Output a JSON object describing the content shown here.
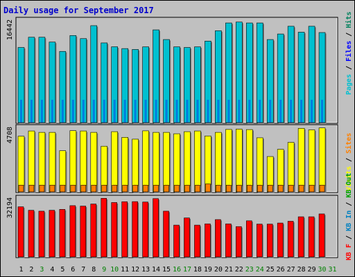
{
  "title": "Daily usage for September 2017",
  "colors": {
    "pages": "#00c0d0",
    "files": "#0000ff",
    "hits": "#00805c",
    "visits": "#ffff00",
    "sites": "#ff8000",
    "kb": "#ff0000",
    "kb_in": "#0080c0",
    "kb_out": "#00a000",
    "weekend_label": "#008000",
    "weekday_label": "#000000"
  },
  "chart_data": [
    {
      "type": "bar",
      "title": "Daily usage for September 2017",
      "ymax_label": "16442",
      "legend": [
        "Pages",
        "Files",
        "Hits"
      ],
      "categories": [
        "1",
        "2",
        "3",
        "4",
        "5",
        "6",
        "7",
        "8",
        "9",
        "10",
        "11",
        "12",
        "13",
        "14",
        "15",
        "16",
        "17",
        "18",
        "19",
        "20",
        "21",
        "22",
        "23",
        "24",
        "25",
        "26",
        "27",
        "28",
        "29",
        "30",
        "31"
      ],
      "series": [
        {
          "name": "Hits",
          "values": [
            10870,
            12350,
            12350,
            11650,
            10300,
            12600,
            12150,
            14030,
            11530,
            10970,
            10710,
            10580,
            10960,
            13420,
            12020,
            10960,
            10870,
            10960,
            11790,
            13290,
            14420,
            14550,
            14420,
            14420,
            12020,
            12820,
            13940,
            13080,
            13940,
            13030,
            0
          ]
        },
        {
          "name": "Files",
          "values": [
            3300,
            3300,
            3300,
            3300,
            3300,
            3300,
            3300,
            3300,
            3300,
            3300,
            3300,
            3300,
            3300,
            3300,
            3300,
            3300,
            3300,
            3300,
            3300,
            3300,
            3300,
            3300,
            3300,
            3300,
            3300,
            3300,
            3300,
            3300,
            3300,
            3300,
            0
          ]
        },
        {
          "name": "Pages",
          "values": [
            0,
            0,
            0,
            0,
            0,
            0,
            0,
            0,
            0,
            0,
            0,
            0,
            0,
            0,
            0,
            0,
            0,
            0,
            0,
            0,
            0,
            0,
            0,
            0,
            0,
            0,
            0,
            0,
            0,
            0,
            0
          ]
        }
      ]
    },
    {
      "type": "bar",
      "ymax_label": "4708",
      "legend": [
        "Visits",
        "Sites"
      ],
      "categories": [
        "1",
        "2",
        "3",
        "4",
        "5",
        "6",
        "7",
        "8",
        "9",
        "10",
        "11",
        "12",
        "13",
        "14",
        "15",
        "16",
        "17",
        "18",
        "19",
        "20",
        "21",
        "22",
        "23",
        "24",
        "25",
        "26",
        "27",
        "28",
        "29",
        "30",
        "31"
      ],
      "series": [
        {
          "name": "Visits",
          "values": [
            4000,
            4380,
            4280,
            4280,
            2960,
            4400,
            4380,
            4280,
            3280,
            4330,
            3920,
            3790,
            4390,
            4280,
            4280,
            4180,
            4330,
            4380,
            4020,
            4280,
            4490,
            4510,
            4480,
            3890,
            2540,
            3060,
            3560,
            4570,
            4460,
            4600,
            0
          ]
        },
        {
          "name": "Sites",
          "values": [
            480,
            480,
            480,
            480,
            480,
            480,
            480,
            480,
            480,
            480,
            480,
            480,
            480,
            480,
            480,
            480,
            480,
            480,
            570,
            480,
            480,
            480,
            480,
            480,
            480,
            480,
            480,
            480,
            480,
            480,
            0
          ]
        }
      ]
    },
    {
      "type": "bar",
      "ymax_label": "32194",
      "legend": [
        "KB F",
        "KB In",
        "KB Out"
      ],
      "categories": [
        "1",
        "2",
        "3",
        "4",
        "5",
        "6",
        "7",
        "8",
        "9",
        "10",
        "11",
        "12",
        "13",
        "14",
        "15",
        "16",
        "17",
        "18",
        "19",
        "20",
        "21",
        "22",
        "23",
        "24",
        "25",
        "26",
        "27",
        "28",
        "29",
        "30",
        "31"
      ],
      "series": [
        {
          "name": "KB F",
          "values": [
            28100,
            26150,
            25650,
            26150,
            26650,
            28750,
            28500,
            29670,
            32850,
            30500,
            30950,
            31000,
            30770,
            32700,
            25650,
            17830,
            21860,
            17830,
            18530,
            20940,
            18530,
            17000,
            20250,
            18400,
            18400,
            19000,
            20000,
            22500,
            22500,
            24100,
            0
          ]
        },
        {
          "name": "KB In",
          "values": [
            0,
            0,
            0,
            0,
            0,
            0,
            0,
            0,
            0,
            0,
            0,
            0,
            0,
            0,
            0,
            0,
            0,
            0,
            0,
            0,
            0,
            0,
            0,
            0,
            0,
            0,
            0,
            0,
            0,
            0,
            0
          ]
        },
        {
          "name": "KB Out",
          "values": [
            0,
            0,
            0,
            0,
            0,
            0,
            0,
            0,
            0,
            0,
            0,
            0,
            0,
            0,
            0,
            0,
            0,
            0,
            0,
            0,
            0,
            0,
            0,
            0,
            0,
            0,
            0,
            0,
            0,
            0,
            0
          ]
        }
      ]
    }
  ],
  "weekend_days": [
    "3",
    "9",
    "10",
    "16",
    "17",
    "23",
    "24",
    "30",
    "31"
  ]
}
